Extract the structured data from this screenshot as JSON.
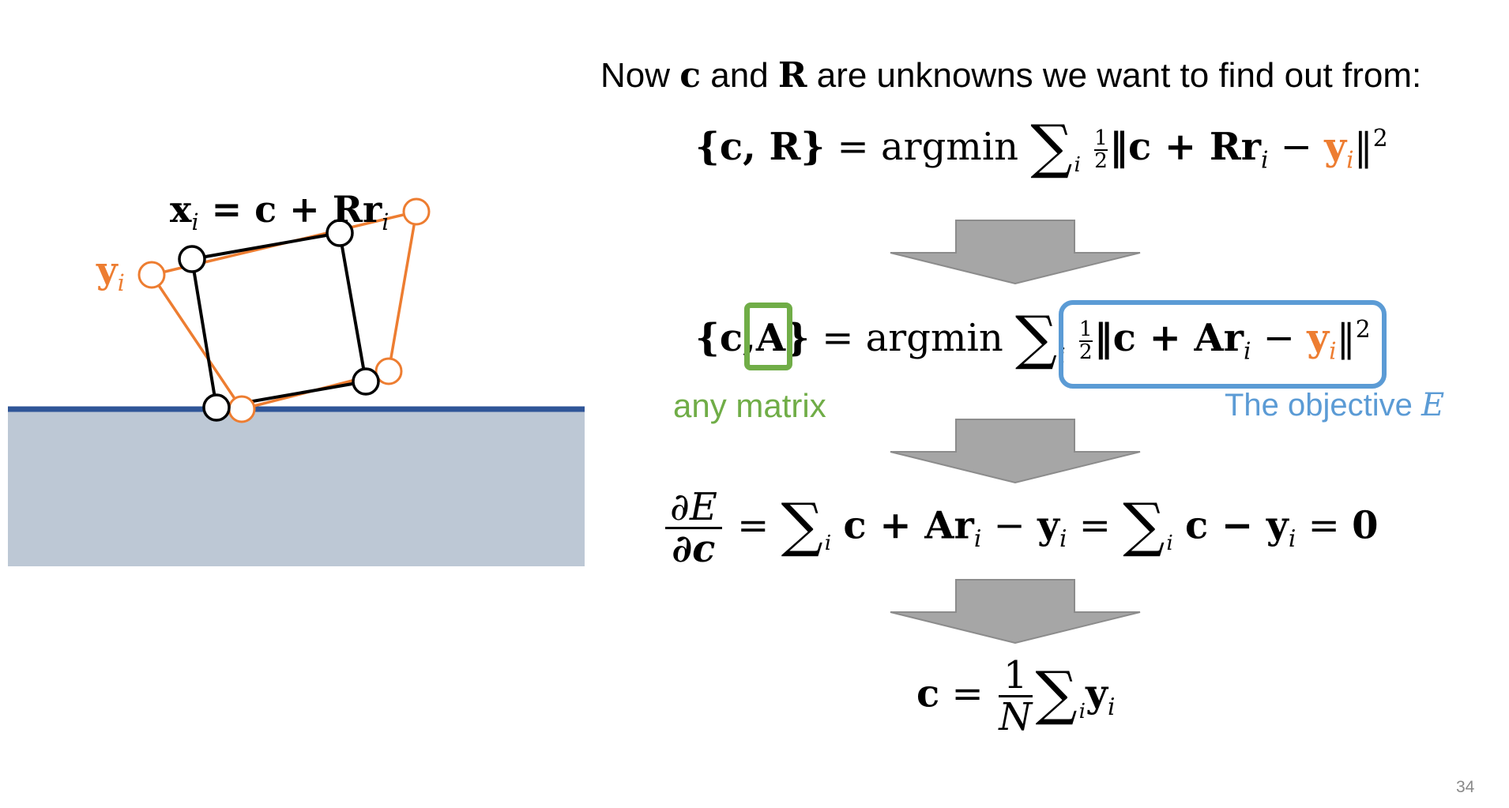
{
  "diagram": {
    "label_x": "x",
    "label_x_sub": "i",
    "label_x_eq": " = c + R",
    "label_x_r": "r",
    "label_x_r_sub": "i",
    "label_y": "y",
    "label_y_sub": "i",
    "colors": {
      "black_shape": "#000000",
      "orange_shape": "#ED7D31",
      "ground": "#BDC8D5",
      "ground_edge": "#2F5597"
    }
  },
  "slide": {
    "intro_prefix": "Now ",
    "intro_c": "c",
    "intro_and": " and ",
    "intro_R": "R",
    "intro_suffix": " are unknowns we want to find out from:",
    "eq1": {
      "lhs": "{c, R}",
      "eq": " = argmin ",
      "sum": "∑",
      "sum_sub": "i",
      "half_num": "1",
      "half_den": "2",
      "body": "‖c + R",
      "r": "r",
      "r_sub": "i",
      "minus": " − ",
      "y": "y",
      "y_sub": "i",
      "norm": "‖",
      "sq": "2"
    },
    "eq2": {
      "lhs_open": "{c,",
      "lhs_A": "A",
      "lhs_close": "}",
      "eq": " = argmin ",
      "sum": "∑",
      "sum_sub": "i",
      "half_num": "1",
      "half_den": "2",
      "body": "‖c + A",
      "r": "r",
      "r_sub": "i",
      "minus": " − ",
      "y": "y",
      "y_sub": "i",
      "norm": "‖",
      "sq": "2",
      "any_matrix": "any matrix",
      "objective": "The objective ",
      "objective_E": "E"
    },
    "eq3": {
      "d_num": "∂E",
      "d_den": "∂c",
      "eq": " = ",
      "sum": "∑",
      "sum_sub": "i",
      "part1": "c + A",
      "r": "r",
      "r_sub": "i",
      "minus": " − ",
      "y": "y",
      "y_sub": "i",
      "eq2": " = ",
      "sum2": "∑",
      "sum2_sub": "i",
      "part2": "c − ",
      "y2": "y",
      "y2_sub": "i",
      "eq3": " = ",
      "zero": "0"
    },
    "eq4": {
      "lhs": "c",
      "eq": " = ",
      "num": "1",
      "den": "N",
      "sum": "∑",
      "sum_sub": "i",
      "y": "y",
      "y_sub": "i"
    },
    "page_number": "34"
  }
}
